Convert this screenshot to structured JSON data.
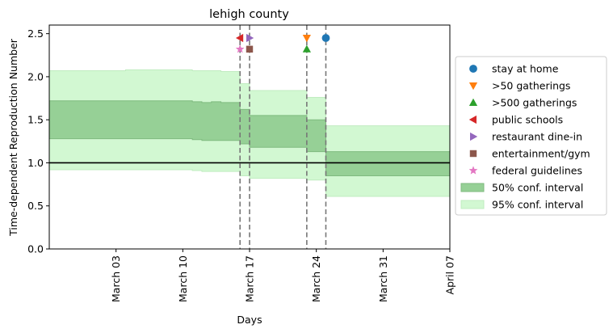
{
  "chart_data": {
    "type": "line",
    "title": "lehigh county",
    "xlabel": "Days",
    "ylabel": "Time-dependent Reproduction Number",
    "x_range": [
      "2020-02-25",
      "2020-04-07"
    ],
    "ylim": [
      0.0,
      2.6
    ],
    "x_ticks": [
      {
        "date": "2020-03-03",
        "label": "March 03"
      },
      {
        "date": "2020-03-10",
        "label": "March 10"
      },
      {
        "date": "2020-03-17",
        "label": "March 17"
      },
      {
        "date": "2020-03-24",
        "label": "March 24"
      },
      {
        "date": "2020-03-31",
        "label": "March 31"
      },
      {
        "date": "2020-04-07",
        "label": "April 07"
      }
    ],
    "y_ticks": [
      0.0,
      0.5,
      1.0,
      1.5,
      2.0,
      2.5
    ],
    "reference_line": {
      "y": 1.0,
      "color": "#000000"
    },
    "grid": false,
    "legend_position": "right",
    "intervals": [
      {
        "start": "2020-02-25",
        "end": "2020-03-04",
        "ci50": [
          1.28,
          1.72
        ],
        "ci95": [
          0.92,
          2.07
        ]
      },
      {
        "start": "2020-03-04",
        "end": "2020-03-11",
        "ci50": [
          1.28,
          1.72
        ],
        "ci95": [
          0.92,
          2.08
        ]
      },
      {
        "start": "2020-03-11",
        "end": "2020-03-12",
        "ci50": [
          1.27,
          1.71
        ],
        "ci95": [
          0.91,
          2.07
        ]
      },
      {
        "start": "2020-03-12",
        "end": "2020-03-13",
        "ci50": [
          1.26,
          1.7
        ],
        "ci95": [
          0.9,
          2.07
        ]
      },
      {
        "start": "2020-03-13",
        "end": "2020-03-14",
        "ci50": [
          1.26,
          1.71
        ],
        "ci95": [
          0.9,
          2.07
        ]
      },
      {
        "start": "2020-03-14",
        "end": "2020-03-16",
        "ci50": [
          1.26,
          1.7
        ],
        "ci95": [
          0.9,
          2.06
        ]
      },
      {
        "start": "2020-03-16",
        "end": "2020-03-17",
        "ci50": [
          1.22,
          1.62
        ],
        "ci95": [
          0.85,
          1.92
        ]
      },
      {
        "start": "2020-03-17",
        "end": "2020-03-23",
        "ci50": [
          1.18,
          1.55
        ],
        "ci95": [
          0.82,
          1.84
        ]
      },
      {
        "start": "2020-03-23",
        "end": "2020-03-25",
        "ci50": [
          1.13,
          1.5
        ],
        "ci95": [
          0.8,
          1.76
        ]
      },
      {
        "start": "2020-03-25",
        "end": "2020-03-27",
        "ci50": [
          0.85,
          1.13
        ],
        "ci95": [
          0.61,
          1.43
        ]
      },
      {
        "start": "2020-03-27",
        "end": "2020-04-07",
        "ci50": [
          0.85,
          1.13
        ],
        "ci95": [
          0.61,
          1.43
        ]
      }
    ],
    "interventions": [
      {
        "name": "stay at home",
        "date": "2020-03-25",
        "y": 2.45,
        "marker": "circle",
        "color": "#1f77b4"
      },
      {
        "name": ">50 gatherings",
        "date": "2020-03-23",
        "y": 2.45,
        "marker": "triangle-down",
        "color": "#ff7f0e"
      },
      {
        "name": ">500 gatherings",
        "date": "2020-03-23",
        "y": 2.32,
        "marker": "triangle-up",
        "color": "#2ca02c"
      },
      {
        "name": "public schools",
        "date": "2020-03-16",
        "y": 2.45,
        "marker": "triangle-left",
        "color": "#d62728"
      },
      {
        "name": "restaurant dine-in",
        "date": "2020-03-17",
        "y": 2.45,
        "marker": "triangle-right",
        "color": "#9467bd"
      },
      {
        "name": "entertainment/gym",
        "date": "2020-03-17",
        "y": 2.32,
        "marker": "square",
        "color": "#8c564b"
      },
      {
        "name": "federal guidelines",
        "date": "2020-03-16",
        "y": 2.32,
        "marker": "star",
        "color": "#e377c2"
      }
    ],
    "vertical_lines": [
      "2020-03-16",
      "2020-03-17",
      "2020-03-23",
      "2020-03-25"
    ],
    "bands": [
      {
        "name": "50% conf. interval",
        "fill": "#96d096",
        "edge": "#7fba7f"
      },
      {
        "name": "95% conf. interval",
        "fill": "#d2f8d2",
        "edge": "#c0ecc0"
      }
    ]
  }
}
